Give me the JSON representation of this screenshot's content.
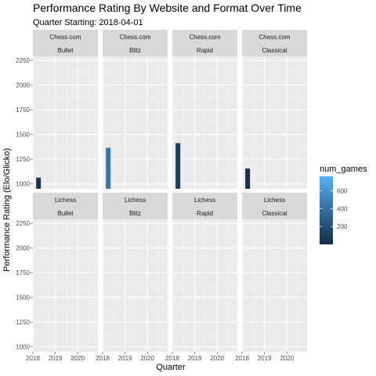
{
  "chart_data": {
    "type": "bar",
    "title": "Performance Rating By Website and Format Over Time",
    "subtitle": "Quarter Starting: 2018-04-01",
    "xlabel": "Quarter",
    "ylabel": "Performance Rating (Elo/Glicko)",
    "x_ticks": [
      2018,
      2019,
      2020
    ],
    "xlim": [
      2018,
      2020.9
    ],
    "y_ticks": [
      1000,
      1250,
      1500,
      1750,
      2000,
      2250
    ],
    "ylim": [
      950,
      2290
    ],
    "websites": [
      "Chess.com",
      "Lichess"
    ],
    "formats": [
      "Bullet",
      "Blitz",
      "Rapid",
      "Classical"
    ],
    "bars": [
      {
        "website": "Chess.com",
        "format": "Bullet",
        "x": 2018.25,
        "value": 1063,
        "num_games": 60
      },
      {
        "website": "Chess.com",
        "format": "Blitz",
        "x": 2018.25,
        "value": 1365,
        "num_games": 420
      },
      {
        "website": "Chess.com",
        "format": "Rapid",
        "x": 2018.25,
        "value": 1412,
        "num_games": 110
      },
      {
        "website": "Chess.com",
        "format": "Classical",
        "x": 2018.25,
        "value": 1155,
        "num_games": 30
      }
    ],
    "legend": {
      "title": "num_games",
      "ticks": [
        200,
        400,
        600
      ],
      "range": [
        1,
        760
      ],
      "low_color": "#132B43",
      "high_color": "#56B1F7",
      "placement": "right"
    },
    "grid": true,
    "panel_background": "#ebebeb",
    "strip_background": "#d9d9d9"
  }
}
